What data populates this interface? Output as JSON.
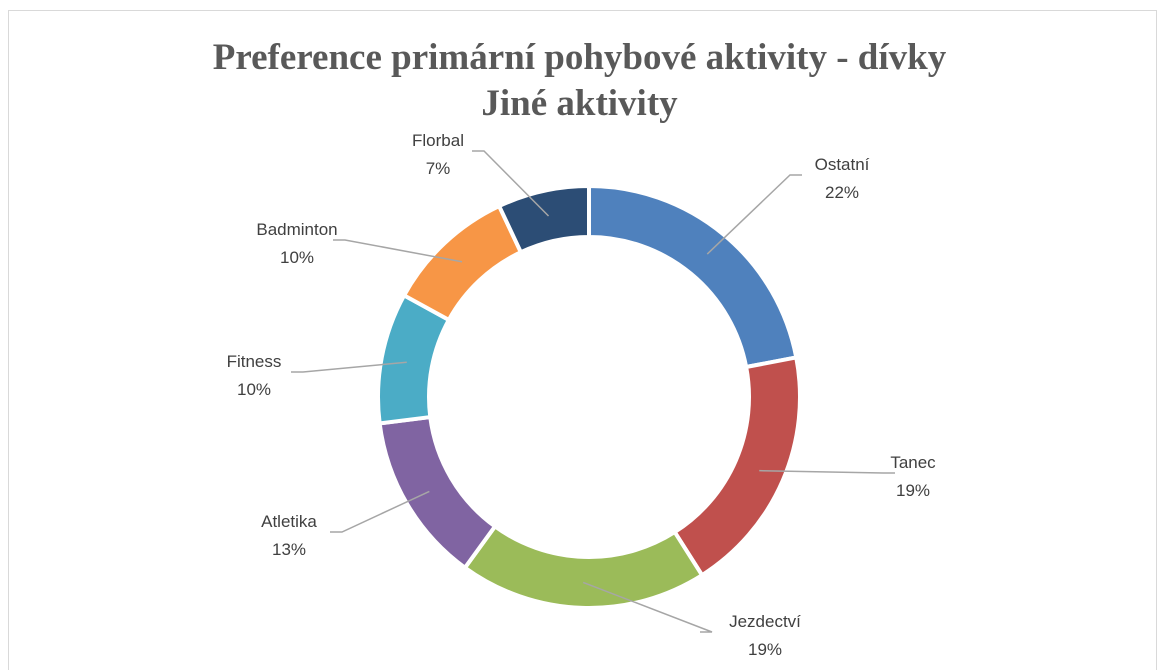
{
  "chart_data": {
    "type": "pie",
    "title": "Preference primární pohybové aktivity - dívky",
    "subtitle": "Jiné aktivity",
    "donut": true,
    "labels": [
      "Ostatní",
      "Tanec",
      "Jezdectví",
      "Atletika",
      "Fitness",
      "Badminton",
      "Florbal"
    ],
    "values": [
      22,
      19,
      19,
      13,
      10,
      10,
      7
    ],
    "value_labels": [
      "22%",
      "19%",
      "19%",
      "13%",
      "10%",
      "10%",
      "7%"
    ],
    "colors": [
      "#4f81bd",
      "#c0504d",
      "#9bbb59",
      "#8064a2",
      "#4bacc6",
      "#f79646",
      "#2c4d75"
    ]
  }
}
